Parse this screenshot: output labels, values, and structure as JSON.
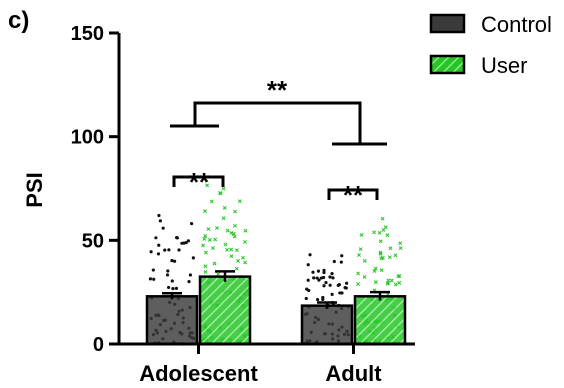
{
  "chart_data": {
    "type": "bar",
    "panel_label": "c)",
    "ylabel": "PSI",
    "ylim": [
      0,
      150
    ],
    "yticks": [
      "0",
      "50",
      "100",
      "150"
    ],
    "categories": [
      "Adolescent",
      "Adult"
    ],
    "series": [
      {
        "name": "Control",
        "values": [
          23,
          18.5
        ],
        "errors": [
          1.5,
          1.5
        ],
        "color": "#3a3a3a",
        "pattern": "solid"
      },
      {
        "name": "User",
        "values": [
          32.5,
          23
        ],
        "errors": [
          2.5,
          2
        ],
        "color": "#27c427",
        "pattern": "hatched"
      }
    ],
    "significance": [
      {
        "label": "**",
        "type": "within-group",
        "group": "Adolescent"
      },
      {
        "label": "**",
        "type": "within-group",
        "group": "Adult"
      },
      {
        "label": "**",
        "type": "between-group"
      }
    ],
    "legend_position": "top-right",
    "grid": false
  }
}
